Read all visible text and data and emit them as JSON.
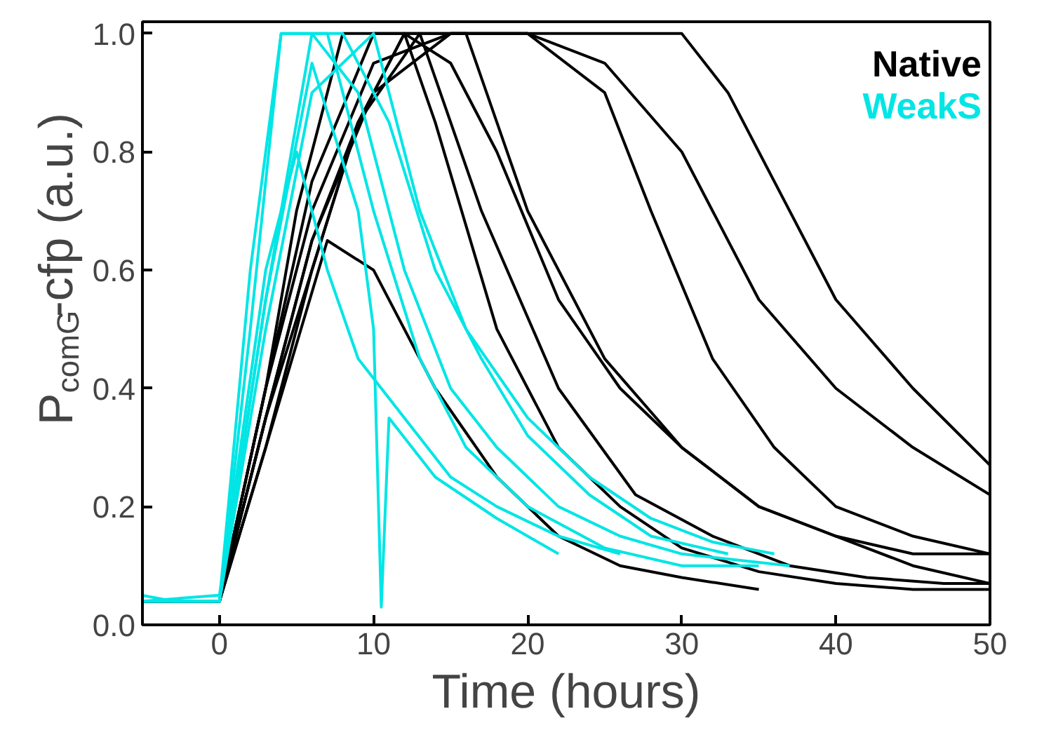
{
  "chart_data": {
    "type": "line",
    "xlabel": "Time (hours)",
    "ylabel": "P$_{comG}$-cfp (a.u.)",
    "xlim": [
      -5,
      50
    ],
    "xticks": [
      0,
      10,
      20,
      30,
      40,
      50
    ],
    "ylim": [
      0,
      1.02
    ],
    "yticks": [
      {
        "value": 0,
        "label": "0.0"
      },
      {
        "value": 0.2,
        "label": "0.2"
      },
      {
        "value": 0.4,
        "label": "0.4"
      },
      {
        "value": 0.6,
        "label": "0.6"
      },
      {
        "value": 0.8,
        "label": "0.8"
      },
      {
        "value": 1,
        "label": "1.0"
      }
    ],
    "grid": false,
    "legend": "top right",
    "marker": "none",
    "line_style": "solid",
    "series": [
      {
        "name": "Native",
        "color": "#000000",
        "x": [
          -5,
          0,
          3,
          6,
          10,
          15,
          20,
          25,
          30,
          33,
          36,
          40,
          45,
          50
        ],
        "values": [
          0.04,
          0.04,
          0.4,
          0.7,
          0.95,
          1,
          1,
          1,
          1,
          0.9,
          0.75,
          0.55,
          0.4,
          0.27
        ]
      },
      {
        "color": "#000000",
        "x": [
          -5,
          0,
          3,
          6,
          10,
          15,
          20,
          25,
          30,
          35,
          40,
          45,
          50
        ],
        "values": [
          0.04,
          0.04,
          0.35,
          0.65,
          0.9,
          1,
          1,
          0.95,
          0.8,
          0.55,
          0.4,
          0.3,
          0.22
        ]
      },
      {
        "color": "#000000",
        "x": [
          -5,
          0,
          3,
          6,
          10,
          15,
          20,
          25,
          28,
          32,
          36,
          40,
          45,
          50
        ],
        "values": [
          0.04,
          0.04,
          0.4,
          0.75,
          1,
          1,
          1,
          0.9,
          0.7,
          0.45,
          0.3,
          0.2,
          0.15,
          0.12
        ]
      },
      {
        "color": "#000000",
        "x": [
          -5,
          0,
          3,
          6,
          9,
          12,
          15,
          18,
          22,
          26,
          30,
          35,
          40,
          45,
          50
        ],
        "values": [
          0.04,
          0.04,
          0.35,
          0.65,
          0.85,
          1,
          0.95,
          0.8,
          0.55,
          0.4,
          0.3,
          0.2,
          0.15,
          0.1,
          0.07
        ]
      },
      {
        "color": "#000000",
        "x": [
          -5,
          0,
          3,
          5,
          8,
          12,
          14,
          18,
          22,
          26,
          30,
          35,
          40,
          45,
          50
        ],
        "values": [
          0.04,
          0.04,
          0.4,
          0.7,
          1,
          1,
          0.85,
          0.5,
          0.3,
          0.2,
          0.13,
          0.09,
          0.07,
          0.06,
          0.06
        ]
      },
      {
        "color": "#000000",
        "x": [
          -5,
          0,
          3,
          7,
          10,
          14,
          18,
          22,
          26,
          30,
          35
        ],
        "values": [
          0.04,
          0.04,
          0.3,
          0.65,
          0.6,
          0.4,
          0.25,
          0.15,
          0.1,
          0.08,
          0.06
        ]
      },
      {
        "color": "#000000",
        "x": [
          -5,
          0,
          3,
          6,
          9,
          13,
          17,
          22,
          27,
          32,
          37,
          42,
          47,
          50
        ],
        "values": [
          0.04,
          0.04,
          0.35,
          0.6,
          0.85,
          1,
          0.7,
          0.4,
          0.22,
          0.15,
          0.1,
          0.08,
          0.07,
          0.07
        ]
      },
      {
        "color": "#000000",
        "x": [
          -5,
          0,
          3,
          6,
          9,
          12,
          16,
          20,
          25,
          30,
          35,
          40,
          45,
          50
        ],
        "values": [
          0.04,
          0.04,
          0.3,
          0.6,
          0.85,
          1,
          1,
          0.7,
          0.45,
          0.3,
          0.2,
          0.15,
          0.12,
          0.12
        ]
      },
      {
        "name": "WeakS",
        "color": "#00e5e5",
        "x": [
          -5,
          -3,
          0,
          2,
          4,
          7,
          10,
          13,
          16,
          20,
          25,
          30,
          35
        ],
        "values": [
          0.05,
          0.04,
          0.04,
          0.5,
          1,
          1,
          0.7,
          0.45,
          0.3,
          0.2,
          0.13,
          0.1,
          0.1
        ]
      },
      {
        "color": "#00e5e5",
        "x": [
          -5,
          0,
          3,
          6,
          9,
          12,
          15,
          18,
          22,
          26,
          30,
          37
        ],
        "values": [
          0.04,
          0.04,
          0.55,
          1,
          0.9,
          0.6,
          0.4,
          0.3,
          0.2,
          0.15,
          0.12,
          0.1
        ]
      },
      {
        "color": "#00e5e5",
        "x": [
          -5,
          0,
          3,
          5,
          7,
          9,
          12,
          15,
          18,
          22,
          26
        ],
        "values": [
          0.04,
          0.05,
          0.6,
          0.8,
          0.6,
          0.45,
          0.35,
          0.25,
          0.2,
          0.15,
          0.12
        ]
      },
      {
        "color": "#00e5e5",
        "x": [
          -5,
          0,
          2,
          4,
          8,
          11,
          14,
          17,
          20,
          24,
          28,
          33
        ],
        "values": [
          0.04,
          0.04,
          0.6,
          1,
          1,
          0.85,
          0.6,
          0.45,
          0.32,
          0.22,
          0.15,
          0.12
        ]
      },
      {
        "color": "#00e5e5",
        "x": [
          -5,
          0,
          3,
          6,
          10,
          13,
          16,
          20,
          24,
          28,
          32,
          36
        ],
        "values": [
          0.04,
          0.04,
          0.5,
          0.9,
          1,
          0.7,
          0.5,
          0.35,
          0.25,
          0.18,
          0.14,
          0.12
        ]
      },
      {
        "color": "#00e5e5",
        "x": [
          -5,
          0,
          3,
          6,
          9,
          10,
          10.5,
          11,
          14,
          18,
          22
        ],
        "values": [
          0.04,
          0.04,
          0.55,
          0.95,
          0.7,
          0.5,
          0.03,
          0.35,
          0.25,
          0.18,
          0.12
        ]
      }
    ]
  }
}
